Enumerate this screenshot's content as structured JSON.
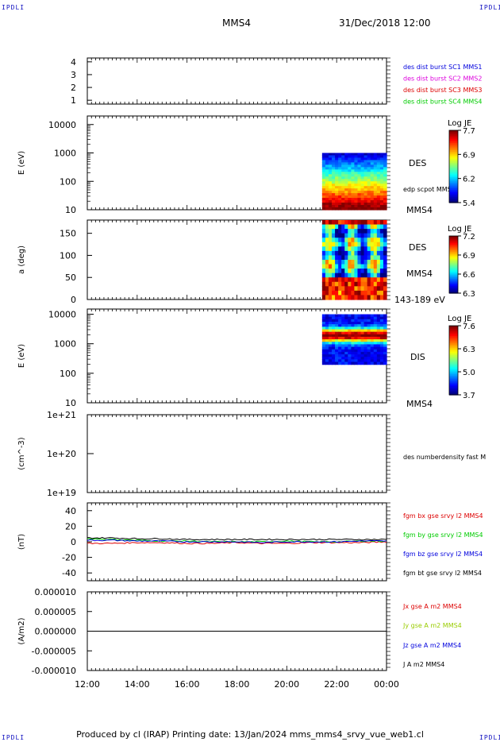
{
  "corner_label": "IPDLI",
  "header": {
    "spacecraft": "MMS4",
    "datetime": "31/Dec/2018 12:00"
  },
  "footer": {
    "text": "Produced by cl (IRAP)   Printing date: 13/Jan/2024   mms_mms4_srvy_vue_web1.cl"
  },
  "time_axis": {
    "ticks": [
      "12:00",
      "14:00",
      "16:00",
      "18:00",
      "20:00",
      "22:00",
      "00:00"
    ]
  },
  "colors": {
    "blue": "#0000dd",
    "magenta": "#dd00dd",
    "red": "#dd0000",
    "green": "#00cc00",
    "black": "#000000",
    "yellow_green": "#99cc00"
  },
  "chart_data": [
    {
      "type": "line",
      "panel": "burst-availability",
      "xlabel": "",
      "ylabel": "",
      "yticks": [
        "1",
        "2",
        "3",
        "4"
      ],
      "ylim": [
        0.7,
        4.3
      ],
      "legend": [
        {
          "label": "des dist burst SC1 MMS1",
          "color": "#0000dd"
        },
        {
          "label": "des dist burst SC2 MMS2",
          "color": "#dd00dd"
        },
        {
          "label": "des dist burst SC3 MMS3",
          "color": "#dd0000"
        },
        {
          "label": "des dist burst SC4 MMS4",
          "color": "#00cc00"
        }
      ],
      "series": []
    },
    {
      "type": "heatmap",
      "panel": "des-energy-spectrogram",
      "ylabel": "E (eV)",
      "ylog": true,
      "ylim": [
        10,
        20000
      ],
      "yticks": [
        "10",
        "100",
        "1000",
        "10000"
      ],
      "data_coverage_time": [
        "21:25",
        "00:00"
      ],
      "data_coverage_energy": [
        10,
        1000
      ],
      "labels": [
        "DES",
        "edp scpot MMS4",
        "MMS4"
      ],
      "colorbar": {
        "title": "Log JE",
        "ticks": [
          "7.7",
          "6.9",
          "6.2",
          "5.4"
        ]
      }
    },
    {
      "type": "heatmap",
      "panel": "des-pitch-angle",
      "ylabel": "a (deg)",
      "ylim": [
        0,
        180
      ],
      "yticks": [
        "0",
        "50",
        "100",
        "150"
      ],
      "data_coverage_time": [
        "21:25",
        "00:00"
      ],
      "labels": [
        "DES",
        "MMS4",
        "143-189 eV"
      ],
      "colorbar": {
        "title": "Log JE",
        "ticks": [
          "7.2",
          "6.9",
          "6.6",
          "6.3"
        ]
      }
    },
    {
      "type": "heatmap",
      "panel": "dis-energy-spectrogram",
      "ylabel": "E (eV)",
      "ylog": true,
      "ylim": [
        10,
        15000
      ],
      "yticks": [
        "10",
        "100",
        "1000",
        "10000"
      ],
      "data_coverage_time": [
        "21:25",
        "00:00"
      ],
      "data_coverage_energy": [
        200,
        10000
      ],
      "labels": [
        "DIS",
        "MMS4"
      ],
      "colorbar": {
        "title": "Log JE",
        "ticks": [
          "7.6",
          "6.3",
          "5.0",
          "3.7"
        ]
      }
    },
    {
      "type": "line",
      "panel": "number-density",
      "ylabel": "(cm^-3)",
      "ylog": true,
      "ylim": [
        1e+19,
        1e+21
      ],
      "yticks": [
        "1e+19",
        "1e+20",
        "1e+21"
      ],
      "legend": [
        {
          "label": "des numberdensity fast M",
          "color": "#000000"
        }
      ],
      "series": []
    },
    {
      "type": "line",
      "panel": "magnetic-field",
      "ylabel": "(nT)",
      "ylim": [
        -50,
        50
      ],
      "yticks": [
        "-40",
        "-20",
        "0",
        "20",
        "40"
      ],
      "x_hours": [
        0,
        1,
        2,
        3,
        4,
        5,
        6,
        7,
        8,
        9,
        10,
        11,
        12
      ],
      "series": [
        {
          "name": "fgm bx gse srvy l2 MMS4",
          "color": "#dd0000",
          "values": [
            -2,
            -2,
            -1,
            -1,
            -2,
            -2,
            -1,
            -2,
            -2,
            -1,
            -1,
            -1,
            0
          ]
        },
        {
          "name": "fgm by gse srvy l2 MMS4",
          "color": "#00cc00",
          "values": [
            4,
            3,
            2,
            1,
            1,
            0,
            0,
            0,
            1,
            0,
            0,
            1,
            1
          ]
        },
        {
          "name": "fgm bz gse srvy l2 MMS4",
          "color": "#0000dd",
          "values": [
            2,
            2,
            1,
            1,
            0,
            0,
            0,
            -1,
            0,
            0,
            0,
            1,
            1
          ]
        },
        {
          "name": "fgm bt gse srvy l2 MMS4",
          "color": "#000000",
          "values": [
            5,
            5,
            4,
            4,
            3,
            3,
            3,
            3,
            3,
            3,
            3,
            3,
            3
          ]
        }
      ]
    },
    {
      "type": "line",
      "panel": "current-density",
      "ylabel": "(A/m2)",
      "ylim": [
        -1e-05,
        1e-05
      ],
      "yticks": [
        "-0.000010",
        "-0.000005",
        "0.000000",
        "0.000005",
        "0.000010"
      ],
      "x_hours": [
        0,
        2,
        4,
        6,
        8,
        10,
        12
      ],
      "series": [
        {
          "name": "Jx gse A m2 MMS4",
          "color": "#dd0000",
          "values": [
            0,
            0,
            0,
            0,
            0,
            0,
            0
          ]
        },
        {
          "name": "Jy gse A m2 MMS4",
          "color": "#99cc00",
          "values": [
            0,
            0,
            0,
            0,
            0,
            0,
            0
          ]
        },
        {
          "name": "Jz gse A m2 MMS4",
          "color": "#0000dd",
          "values": [
            0,
            0,
            0,
            0,
            0,
            0,
            0
          ]
        },
        {
          "name": "J A m2 MMS4",
          "color": "#000000",
          "values": [
            0,
            0,
            0,
            0,
            0,
            0,
            0
          ]
        }
      ]
    }
  ]
}
